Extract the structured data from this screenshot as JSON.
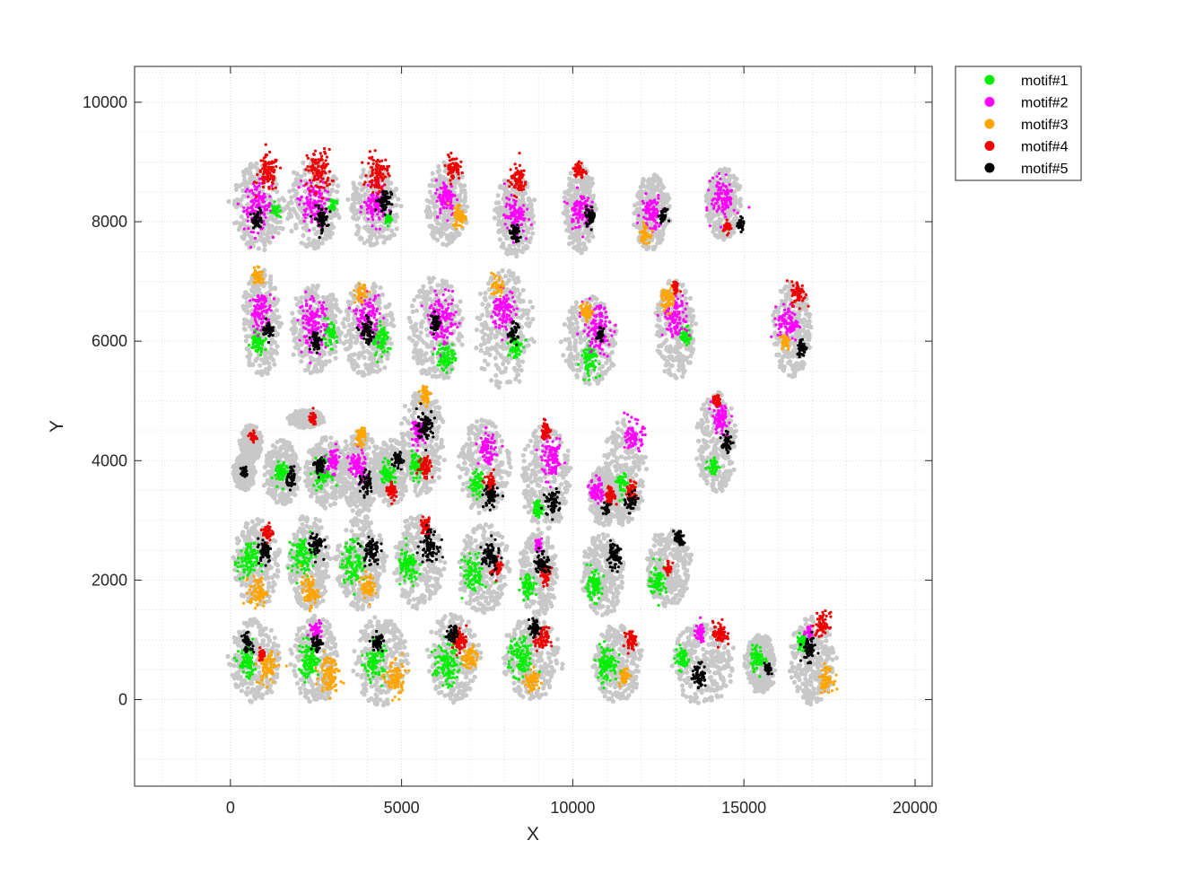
{
  "chart_data": {
    "type": "scatter",
    "title": "",
    "xlabel": "X",
    "ylabel": "Y",
    "xlim": [
      -2800,
      20500
    ],
    "ylim": [
      -1450,
      10600
    ],
    "xticks": [
      0,
      5000,
      10000,
      15000,
      20000
    ],
    "yticks": [
      0,
      2000,
      4000,
      6000,
      8000,
      10000
    ],
    "grid": "on",
    "minor_grid": "on",
    "legend_location": "northeast-outside",
    "background_color": "#c8c8c8",
    "series": [
      {
        "name": "motif#1",
        "color": "#00ee00"
      },
      {
        "name": "motif#2",
        "color": "#ff00ff"
      },
      {
        "name": "motif#3",
        "color": "#ffa500"
      },
      {
        "name": "motif#4",
        "color": "#ee0000"
      },
      {
        "name": "motif#5",
        "color": "#000000"
      }
    ],
    "tissue_sections": [
      {
        "x": 800,
        "y": 8250,
        "rx": 750,
        "ry": 750,
        "m": {
          "2": [
            0,
            0,
            400
          ],
          "4": [
            300,
            550,
            300
          ],
          "5": [
            0,
            -200,
            150
          ],
          "1": [
            500,
            -50,
            120
          ]
        }
      },
      {
        "x": 2400,
        "y": 8300,
        "rx": 750,
        "ry": 750,
        "m": {
          "2": [
            0,
            0,
            400
          ],
          "4": [
            200,
            550,
            350
          ],
          "5": [
            250,
            -250,
            200
          ],
          "1": [
            600,
            0,
            100
          ]
        }
      },
      {
        "x": 4200,
        "y": 8250,
        "rx": 700,
        "ry": 700,
        "m": {
          "2": [
            0,
            0,
            300
          ],
          "4": [
            100,
            550,
            300
          ],
          "5": [
            300,
            100,
            200
          ],
          "1": [
            400,
            -200,
            100
          ]
        }
      },
      {
        "x": 6300,
        "y": 8300,
        "rx": 600,
        "ry": 700,
        "m": {
          "2": [
            0,
            100,
            300
          ],
          "4": [
            200,
            600,
            200
          ],
          "3": [
            400,
            -200,
            200
          ]
        }
      },
      {
        "x": 8300,
        "y": 8100,
        "rx": 550,
        "ry": 700,
        "m": {
          "2": [
            0,
            0,
            300
          ],
          "4": [
            100,
            600,
            250
          ],
          "5": [
            0,
            -300,
            150
          ]
        }
      },
      {
        "x": 10200,
        "y": 8200,
        "rx": 450,
        "ry": 750,
        "m": {
          "2": [
            0,
            0,
            300
          ],
          "5": [
            300,
            -100,
            150
          ],
          "4": [
            0,
            650,
            150
          ]
        }
      },
      {
        "x": 12300,
        "y": 8150,
        "rx": 500,
        "ry": 650,
        "m": {
          "2": [
            0,
            0,
            300
          ],
          "5": [
            350,
            -50,
            100
          ],
          "3": [
            -200,
            -350,
            150
          ]
        }
      },
      {
        "x": 14400,
        "y": 8300,
        "rx": 500,
        "ry": 600,
        "m": {
          "2": [
            0,
            100,
            350
          ],
          "5": [
            500,
            -350,
            100
          ],
          "4": [
            100,
            -400,
            100
          ]
        }
      },
      {
        "x": 900,
        "y": 6300,
        "rx": 550,
        "ry": 900,
        "m": {
          "2": [
            0,
            200,
            300
          ],
          "1": [
            -100,
            -300,
            200
          ],
          "5": [
            200,
            -100,
            150
          ],
          "3": [
            -100,
            800,
            150
          ]
        }
      },
      {
        "x": 2500,
        "y": 6200,
        "rx": 750,
        "ry": 750,
        "m": {
          "2": [
            -100,
            100,
            400
          ],
          "1": [
            400,
            -100,
            200
          ],
          "5": [
            0,
            -200,
            150
          ]
        }
      },
      {
        "x": 4000,
        "y": 6200,
        "rx": 750,
        "ry": 800,
        "m": {
          "2": [
            0,
            200,
            350
          ],
          "1": [
            400,
            -200,
            250
          ],
          "5": [
            0,
            -50,
            200
          ],
          "3": [
            -200,
            600,
            150
          ]
        }
      },
      {
        "x": 6000,
        "y": 6200,
        "rx": 750,
        "ry": 900,
        "m": {
          "2": [
            200,
            150,
            400
          ],
          "1": [
            300,
            -450,
            250
          ],
          "5": [
            0,
            100,
            150
          ]
        }
      },
      {
        "x": 8000,
        "y": 6200,
        "rx": 800,
        "ry": 1000,
        "m": {
          "2": [
            0,
            300,
            350
          ],
          "1": [
            300,
            -300,
            200
          ],
          "5": [
            250,
            -50,
            150
          ],
          "3": [
            -200,
            700,
            150
          ]
        }
      },
      {
        "x": 10500,
        "y": 6000,
        "rx": 750,
        "ry": 750,
        "m": {
          "2": [
            200,
            200,
            400
          ],
          "1": [
            0,
            -300,
            250
          ],
          "5": [
            300,
            100,
            100
          ],
          "3": [
            -100,
            500,
            150
          ]
        }
      },
      {
        "x": 13000,
        "y": 6200,
        "rx": 600,
        "ry": 850,
        "m": {
          "2": [
            0,
            200,
            350
          ],
          "1": [
            300,
            -100,
            150
          ],
          "3": [
            -200,
            500,
            200
          ],
          "4": [
            0,
            700,
            100
          ]
        }
      },
      {
        "x": 16400,
        "y": 6200,
        "rx": 550,
        "ry": 800,
        "m": {
          "2": [
            -100,
            100,
            300
          ],
          "4": [
            200,
            600,
            200
          ],
          "5": [
            300,
            -300,
            150
          ],
          "3": [
            -200,
            -200,
            150
          ]
        }
      },
      {
        "x": 600,
        "y": 4300,
        "rx": 300,
        "ry": 300,
        "m": {
          "4": [
            50,
            100,
            100
          ]
        }
      },
      {
        "x": 2200,
        "y": 4700,
        "rx": 500,
        "ry": 150,
        "m": {
          "4": [
            200,
            0,
            100
          ]
        }
      },
      {
        "x": 400,
        "y": 3800,
        "rx": 300,
        "ry": 300,
        "m": {
          "5": [
            0,
            0,
            100
          ]
        }
      },
      {
        "x": 1500,
        "y": 3800,
        "rx": 500,
        "ry": 550,
        "m": {
          "1": [
            0,
            0,
            200
          ],
          "5": [
            300,
            -100,
            150
          ]
        }
      },
      {
        "x": 2800,
        "y": 3800,
        "rx": 600,
        "ry": 600,
        "m": {
          "1": [
            -100,
            0,
            250
          ],
          "2": [
            200,
            200,
            200
          ],
          "5": [
            -200,
            100,
            150
          ]
        }
      },
      {
        "x": 3800,
        "y": 3800,
        "rx": 600,
        "ry": 700,
        "m": {
          "2": [
            -100,
            100,
            250
          ],
          "5": [
            200,
            -200,
            200
          ],
          "3": [
            0,
            600,
            150
          ]
        }
      },
      {
        "x": 4700,
        "y": 3800,
        "rx": 550,
        "ry": 550,
        "m": {
          "1": [
            -100,
            0,
            200
          ],
          "5": [
            200,
            200,
            150
          ],
          "4": [
            0,
            -300,
            150
          ]
        }
      },
      {
        "x": 5600,
        "y": 4300,
        "rx": 650,
        "ry": 900,
        "m": {
          "5": [
            100,
            300,
            250
          ],
          "2": [
            -100,
            200,
            200
          ],
          "1": [
            -200,
            -400,
            200
          ],
          "4": [
            100,
            -400,
            200
          ],
          "3": [
            100,
            800,
            150
          ]
        }
      },
      {
        "x": 7400,
        "y": 3900,
        "rx": 700,
        "ry": 800,
        "m": {
          "2": [
            100,
            300,
            250
          ],
          "1": [
            -200,
            -300,
            200
          ],
          "5": [
            200,
            -500,
            200
          ],
          "4": [
            200,
            -300,
            150
          ]
        }
      },
      {
        "x": 9200,
        "y": 3700,
        "rx": 700,
        "ry": 900,
        "m": {
          "2": [
            200,
            300,
            300
          ],
          "5": [
            200,
            -400,
            200
          ],
          "1": [
            -200,
            -500,
            150
          ],
          "4": [
            0,
            800,
            150
          ]
        }
      },
      {
        "x": 11500,
        "y": 3800,
        "rx": 600,
        "ry": 900,
        "m": {
          "2": [
            300,
            600,
            250
          ],
          "1": [
            -100,
            -200,
            200
          ],
          "5": [
            200,
            -500,
            150
          ],
          "4": [
            200,
            -300,
            150
          ]
        }
      },
      {
        "x": 14200,
        "y": 4300,
        "rx": 550,
        "ry": 850,
        "m": {
          "2": [
            100,
            400,
            250
          ],
          "5": [
            300,
            0,
            150
          ],
          "1": [
            -100,
            -400,
            150
          ],
          "4": [
            0,
            700,
            100
          ]
        }
      },
      {
        "x": 10900,
        "y": 3400,
        "rx": 450,
        "ry": 500,
        "m": {
          "2": [
            -200,
            100,
            200
          ],
          "4": [
            200,
            0,
            150
          ],
          "5": [
            100,
            -200,
            100
          ]
        }
      },
      {
        "x": 800,
        "y": 2300,
        "rx": 650,
        "ry": 750,
        "m": {
          "1": [
            -300,
            0,
            300
          ],
          "5": [
            200,
            200,
            200
          ],
          "3": [
            0,
            -500,
            250
          ],
          "4": [
            300,
            500,
            150
          ]
        }
      },
      {
        "x": 2300,
        "y": 2300,
        "rx": 600,
        "ry": 800,
        "m": {
          "1": [
            -200,
            100,
            300
          ],
          "5": [
            200,
            300,
            200
          ],
          "3": [
            0,
            -500,
            250
          ]
        }
      },
      {
        "x": 3800,
        "y": 2300,
        "rx": 700,
        "ry": 800,
        "m": {
          "1": [
            -200,
            0,
            350
          ],
          "5": [
            300,
            200,
            250
          ],
          "3": [
            200,
            -400,
            200
          ]
        }
      },
      {
        "x": 5500,
        "y": 2300,
        "rx": 700,
        "ry": 800,
        "m": {
          "1": [
            -300,
            -100,
            300
          ],
          "5": [
            300,
            300,
            250
          ],
          "4": [
            200,
            600,
            150
          ]
        }
      },
      {
        "x": 7400,
        "y": 2200,
        "rx": 700,
        "ry": 750,
        "m": {
          "1": [
            -300,
            -100,
            300
          ],
          "5": [
            200,
            200,
            250
          ],
          "4": [
            400,
            0,
            150
          ]
        }
      },
      {
        "x": 9000,
        "y": 2100,
        "rx": 550,
        "ry": 700,
        "m": {
          "1": [
            -300,
            -200,
            200
          ],
          "5": [
            100,
            200,
            200
          ],
          "4": [
            200,
            0,
            150
          ],
          "2": [
            0,
            500,
            100
          ]
        }
      },
      {
        "x": 10900,
        "y": 2100,
        "rx": 600,
        "ry": 700,
        "m": {
          "1": [
            -300,
            -200,
            250
          ],
          "5": [
            300,
            300,
            200
          ]
        }
      },
      {
        "x": 12800,
        "y": 2200,
        "rx": 650,
        "ry": 650,
        "m": {
          "1": [
            -300,
            -200,
            250
          ],
          "5": [
            300,
            500,
            150
          ],
          "4": [
            0,
            0,
            100
          ]
        }
      },
      {
        "x": 700,
        "y": 650,
        "rx": 700,
        "ry": 700,
        "m": {
          "1": [
            -200,
            -50,
            250
          ],
          "3": [
            400,
            -100,
            300
          ],
          "5": [
            -200,
            300,
            150
          ],
          "4": [
            200,
            100,
            100
          ]
        }
      },
      {
        "x": 2500,
        "y": 650,
        "rx": 700,
        "ry": 750,
        "m": {
          "1": [
            -200,
            0,
            300
          ],
          "3": [
            400,
            -200,
            300
          ],
          "5": [
            0,
            300,
            150
          ],
          "2": [
            0,
            500,
            150
          ]
        }
      },
      {
        "x": 4400,
        "y": 650,
        "rx": 750,
        "ry": 750,
        "m": {
          "1": [
            -200,
            0,
            300
          ],
          "3": [
            400,
            -300,
            300
          ],
          "5": [
            -100,
            300,
            150
          ]
        }
      },
      {
        "x": 6500,
        "y": 700,
        "rx": 750,
        "ry": 750,
        "m": {
          "1": [
            -200,
            -100,
            350
          ],
          "4": [
            200,
            300,
            200
          ],
          "5": [
            0,
            400,
            150
          ],
          "3": [
            500,
            0,
            200
          ]
        }
      },
      {
        "x": 8800,
        "y": 700,
        "rx": 800,
        "ry": 700,
        "m": {
          "1": [
            -300,
            0,
            350
          ],
          "4": [
            300,
            300,
            200
          ],
          "5": [
            100,
            500,
            150
          ],
          "3": [
            0,
            -400,
            200
          ]
        }
      },
      {
        "x": 11300,
        "y": 600,
        "rx": 700,
        "ry": 650,
        "m": {
          "1": [
            -300,
            0,
            300
          ],
          "4": [
            400,
            400,
            150
          ],
          "3": [
            200,
            -200,
            150
          ]
        }
      },
      {
        "x": 13800,
        "y": 600,
        "rx": 850,
        "ry": 700,
        "m": {
          "1": [
            -600,
            100,
            200
          ],
          "4": [
            500,
            500,
            200
          ],
          "5": [
            -100,
            -200,
            200
          ],
          "2": [
            -100,
            500,
            150
          ]
        }
      },
      {
        "x": 15500,
        "y": 600,
        "rx": 450,
        "ry": 500,
        "m": {
          "1": [
            -100,
            100,
            200
          ],
          "5": [
            200,
            -100,
            100
          ]
        }
      },
      {
        "x": 17000,
        "y": 650,
        "rx": 650,
        "ry": 750,
        "m": {
          "5": [
            -100,
            200,
            200
          ],
          "4": [
            300,
            600,
            200
          ],
          "3": [
            400,
            -300,
            200
          ],
          "1": [
            -300,
            300,
            150
          ],
          "2": [
            -100,
            500,
            100
          ]
        }
      }
    ]
  }
}
